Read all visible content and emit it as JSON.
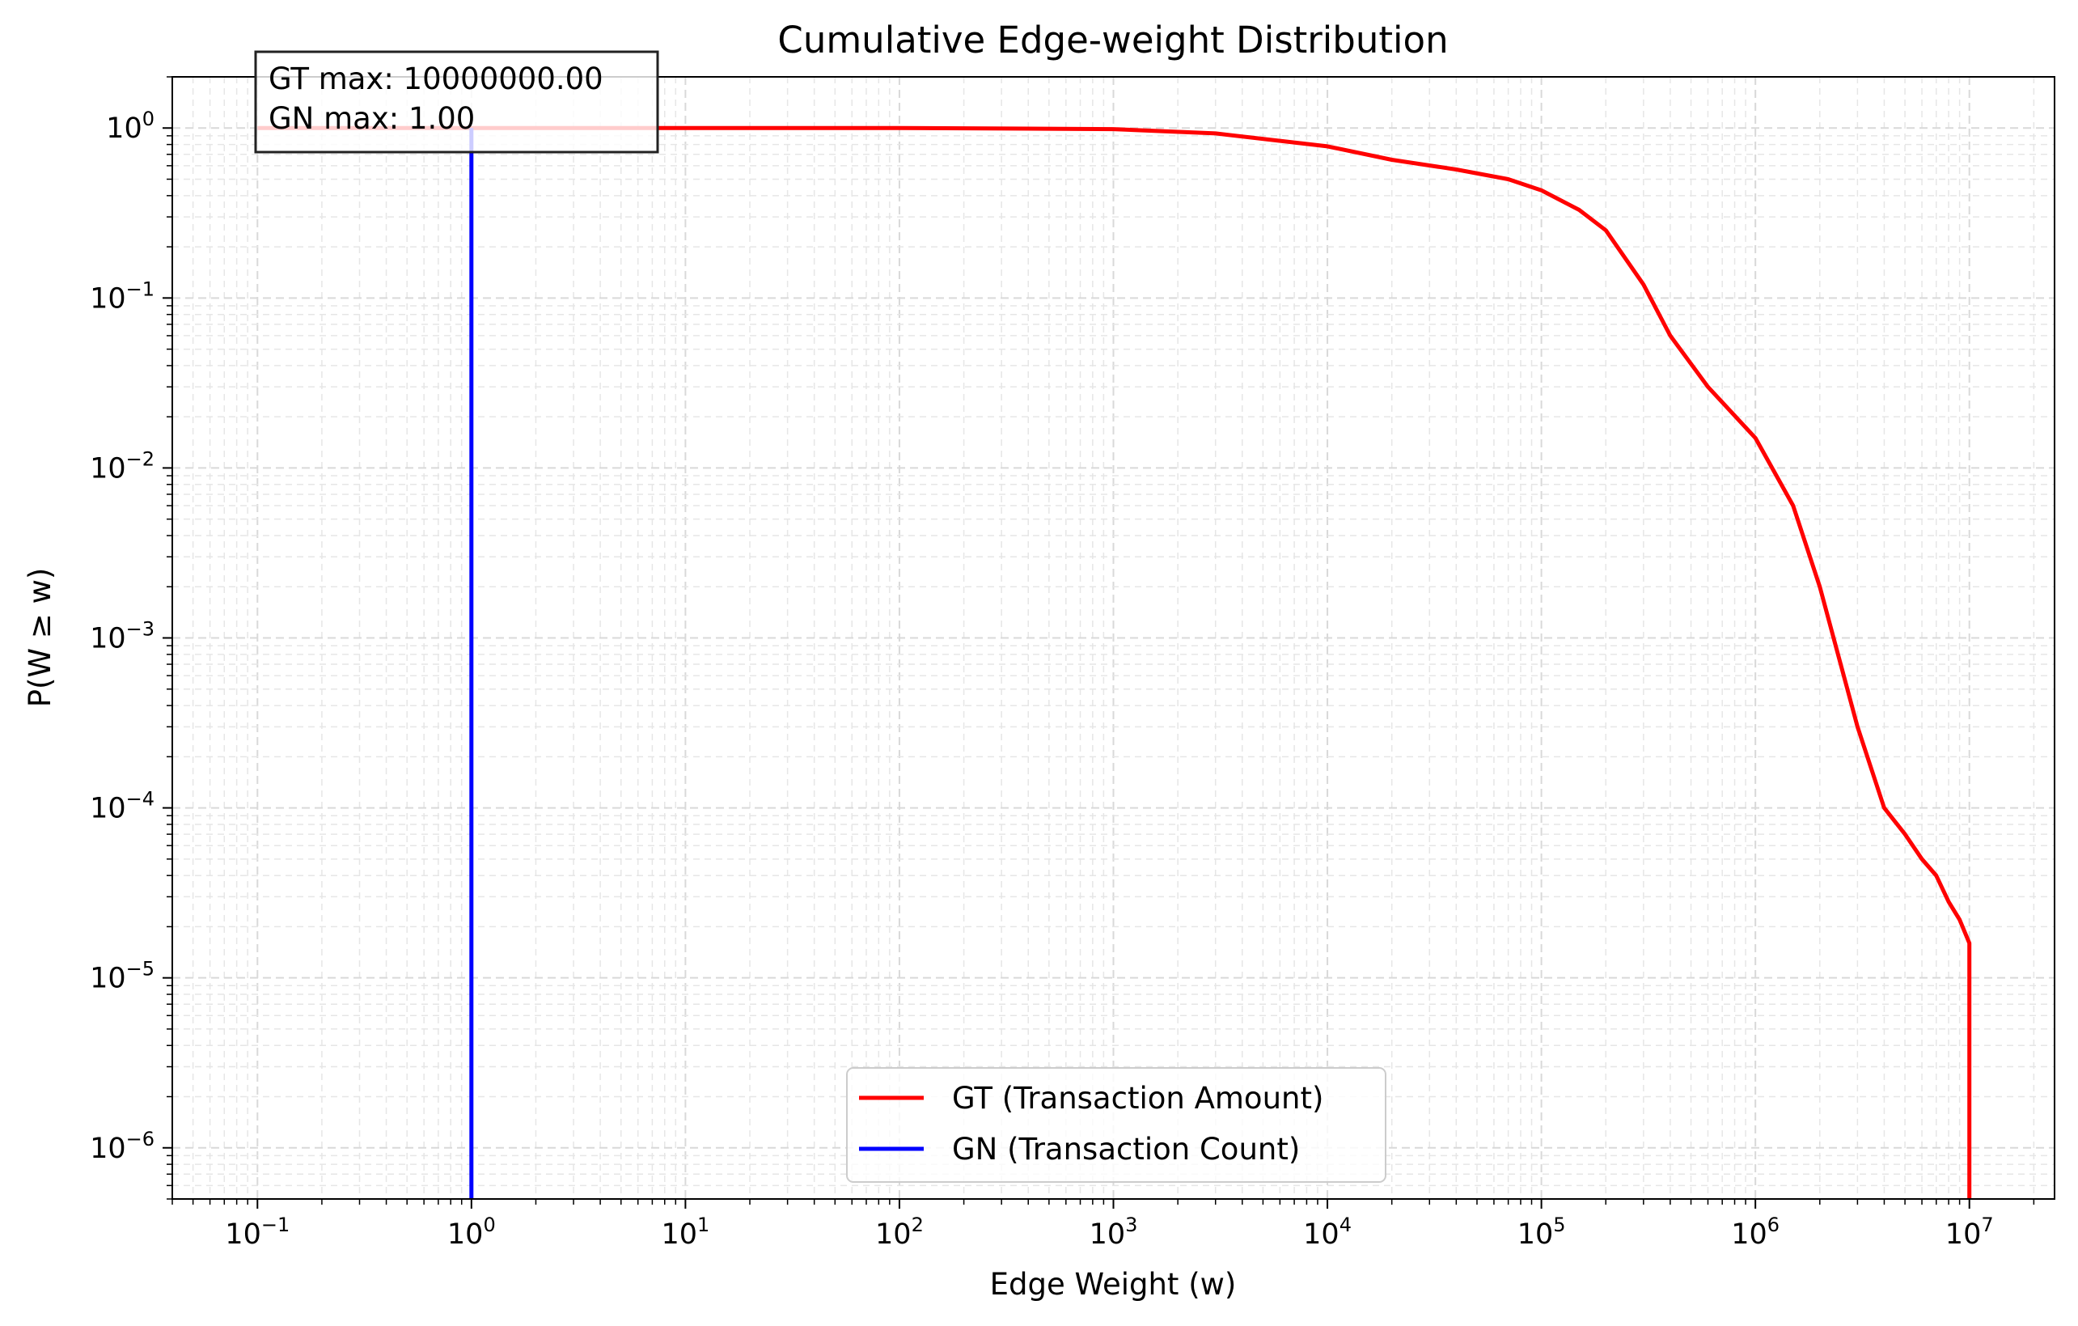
{
  "chart_data": {
    "type": "line",
    "title": "Cumulative Edge-weight Distribution",
    "xlabel": "Edge Weight (w)",
    "ylabel": "P(W ≥ w)",
    "xscale": "log",
    "yscale": "log",
    "xlim": [
      0.04,
      25000000
    ],
    "ylim": [
      5e-07,
      2
    ],
    "x_ticks": [
      {
        "base": "10",
        "exp": "−1",
        "value": 0.1
      },
      {
        "base": "10",
        "exp": "0",
        "value": 1
      },
      {
        "base": "10",
        "exp": "1",
        "value": 10
      },
      {
        "base": "10",
        "exp": "2",
        "value": 100
      },
      {
        "base": "10",
        "exp": "3",
        "value": 1000
      },
      {
        "base": "10",
        "exp": "4",
        "value": 10000
      },
      {
        "base": "10",
        "exp": "5",
        "value": 100000
      },
      {
        "base": "10",
        "exp": "6",
        "value": 1000000
      },
      {
        "base": "10",
        "exp": "7",
        "value": 10000000
      }
    ],
    "y_ticks": [
      {
        "base": "10",
        "exp": "0",
        "value": 1
      },
      {
        "base": "10",
        "exp": "−1",
        "value": 0.1
      },
      {
        "base": "10",
        "exp": "−2",
        "value": 0.01
      },
      {
        "base": "10",
        "exp": "−3",
        "value": 0.001
      },
      {
        "base": "10",
        "exp": "−4",
        "value": 0.0001
      },
      {
        "base": "10",
        "exp": "−5",
        "value": 1e-05
      },
      {
        "base": "10",
        "exp": "−6",
        "value": 1e-06
      }
    ],
    "grid": true,
    "legend_position": "lower-center",
    "series": [
      {
        "name": "GT (Transaction Amount)",
        "color": "#ff0000",
        "x": [
          0.1,
          1,
          10,
          100,
          1000,
          3000,
          10000,
          20000,
          40000,
          70000,
          100000,
          150000,
          200000,
          300000,
          400000,
          600000,
          1000000,
          1500000,
          2000000,
          3000000,
          4000000,
          5000000,
          6000000,
          7000000,
          8000000,
          9000000,
          10000000,
          10000000
        ],
        "y": [
          1,
          1,
          1,
          1,
          0.985,
          0.93,
          0.78,
          0.65,
          0.57,
          0.5,
          0.43,
          0.33,
          0.25,
          0.12,
          0.06,
          0.03,
          0.015,
          0.006,
          0.002,
          0.0003,
          0.0001,
          7e-05,
          5e-05,
          4e-05,
          2.8e-05,
          2.2e-05,
          1.6e-05,
          5e-07
        ]
      },
      {
        "name": "GN (Transaction Count)",
        "color": "#0000ff",
        "x": [
          1,
          1
        ],
        "y": [
          1,
          5e-07
        ]
      }
    ],
    "annotation": {
      "lines": [
        "GT max: 10000000.00",
        "GN max: 1.00"
      ]
    }
  }
}
